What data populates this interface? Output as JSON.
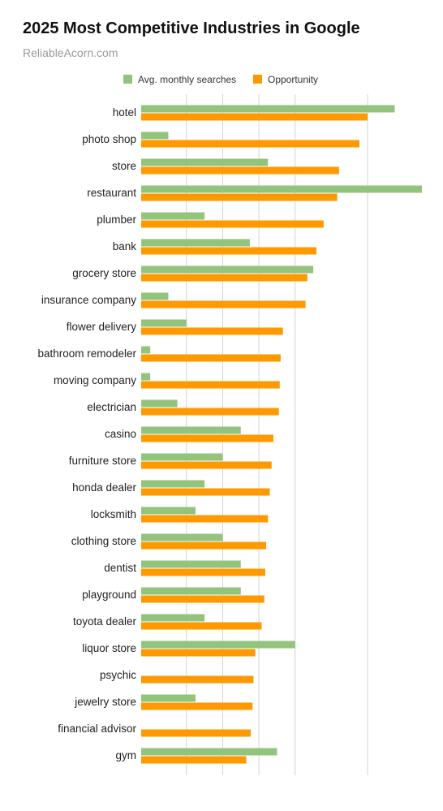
{
  "chart_data": {
    "type": "bar",
    "orientation": "horizontal",
    "title": "2025 Most Competitive Industries in Google",
    "subtitle": "ReliableAcorn.com",
    "legend_position": "top",
    "grid": true,
    "categories": [
      "hotel",
      "photo shop",
      "store",
      "restaurant",
      "plumber",
      "bank",
      "grocery store",
      "insurance company",
      "flower delivery",
      "bathroom remodeler",
      "moving company",
      "electrician",
      "casino",
      "furniture store",
      "honda dealer",
      "locksmith",
      "clothing store",
      "dentist",
      "playground",
      "toyota dealer",
      "liquor store",
      "psychic",
      "jewelry store",
      "financial advisor",
      "gym"
    ],
    "series": [
      {
        "name": "Avg. monthly searches",
        "color": "#93c47d",
        "values": [
          560,
          60,
          280,
          620,
          140,
          240,
          380,
          60,
          100,
          20,
          20,
          80,
          220,
          180,
          140,
          120,
          180,
          220,
          220,
          140,
          340,
          0,
          120,
          0,
          300
        ]
      },
      {
        "name": "Opportunity",
        "color": "#ff9900",
        "values": [
          500,
          482,
          437,
          433,
          403,
          387,
          367,
          363,
          313,
          308,
          306,
          304,
          292,
          288,
          284,
          280,
          276,
          274,
          272,
          266,
          252,
          248,
          246,
          242,
          232
        ]
      }
    ],
    "xlim": [
      0,
      620
    ]
  }
}
